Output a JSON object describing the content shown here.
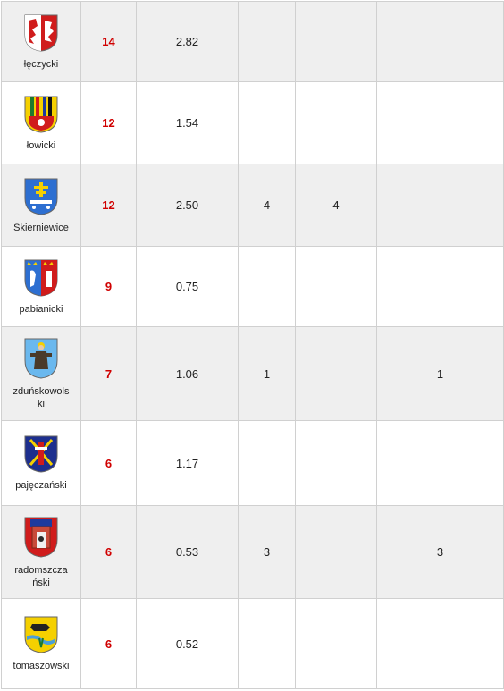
{
  "rows": [
    {
      "name": "łęczycki",
      "score": "14",
      "value": "2.82",
      "c4": "",
      "c5": "",
      "c6": "",
      "emblem": "leczycki-coat-of-arms-icon"
    },
    {
      "name": "łowicki",
      "score": "12",
      "value": "1.54",
      "c4": "",
      "c5": "",
      "c6": "",
      "emblem": "lowicki-coat-of-arms-icon"
    },
    {
      "name": "Skierniewice",
      "score": "12",
      "value": "2.50",
      "c4": "4",
      "c5": "4",
      "c6": "",
      "emblem": "skierniewice-coat-of-arms-icon"
    },
    {
      "name": "pabianicki",
      "score": "9",
      "value": "0.75",
      "c4": "",
      "c5": "",
      "c6": "",
      "emblem": "pabianicki-coat-of-arms-icon"
    },
    {
      "name": "zduńskowolski",
      "score": "7",
      "value": "1.06",
      "c4": "1",
      "c5": "",
      "c6": "1",
      "emblem": "zdunskowolski-coat-of-arms-icon"
    },
    {
      "name": "pajęczański",
      "score": "6",
      "value": "1.17",
      "c4": "",
      "c5": "",
      "c6": "",
      "emblem": "pajeczanski-coat-of-arms-icon"
    },
    {
      "name": "radomszczański",
      "score": "6",
      "value": "0.53",
      "c4": "3",
      "c5": "",
      "c6": "3",
      "emblem": "radomszczanski-coat-of-arms-icon"
    },
    {
      "name": "tomaszowski",
      "score": "6",
      "value": "0.52",
      "c4": "",
      "c5": "",
      "c6": "",
      "emblem": "tomaszowski-coat-of-arms-icon"
    }
  ]
}
